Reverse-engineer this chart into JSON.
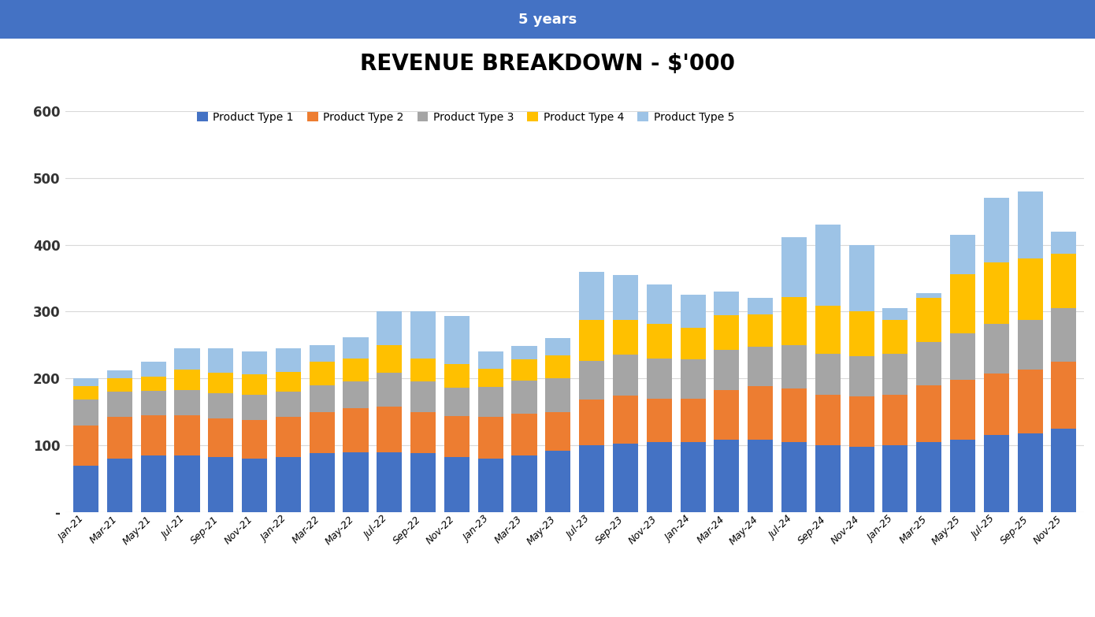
{
  "title": "REVENUE BREAKDOWN - $'000",
  "subtitle": "5 years",
  "subtitle_bg": "#4472C4",
  "subtitle_color": "#FFFFFF",
  "title_color": "#000000",
  "background_color": "#FFFFFF",
  "plot_bg": "#FFFFFF",
  "legend_labels": [
    "Product Type 1",
    "Product Type 2",
    "Product Type 3",
    "Product Type 4",
    "Product Type 5"
  ],
  "colors": [
    "#4472C4",
    "#ED7D31",
    "#A5A5A5",
    "#FFC000",
    "#9DC3E6"
  ],
  "categories": [
    "Jan-21",
    "Mar-21",
    "May-21",
    "Jul-21",
    "Sep-21",
    "Nov-21",
    "Jan-22",
    "Mar-22",
    "May-22",
    "Jul-22",
    "Sep-22",
    "Nov-22",
    "Jan-23",
    "Mar-23",
    "May-23",
    "Jul-23",
    "Sep-23",
    "Nov-23",
    "Jan-24",
    "Mar-24",
    "May-24",
    "Jul-24",
    "Sep-24",
    "Nov-24",
    "Jan-25",
    "Mar-25",
    "May-25",
    "Jul-25",
    "Sep-25",
    "Nov-25"
  ],
  "series": [
    [
      70,
      80,
      85,
      85,
      82,
      80,
      82,
      88,
      90,
      90,
      88,
      82,
      80,
      85,
      92,
      100,
      102,
      105,
      105,
      108,
      108,
      105,
      100,
      98,
      100,
      105,
      108,
      115,
      118,
      125
    ],
    [
      60,
      62,
      60,
      60,
      58,
      58,
      60,
      62,
      65,
      68,
      62,
      62,
      62,
      62,
      58,
      68,
      72,
      65,
      65,
      75,
      80,
      80,
      75,
      75,
      75,
      85,
      90,
      92,
      95,
      100
    ],
    [
      38,
      38,
      36,
      38,
      38,
      38,
      38,
      40,
      40,
      50,
      45,
      42,
      45,
      50,
      50,
      58,
      62,
      60,
      58,
      60,
      60,
      65,
      62,
      60,
      62,
      65,
      70,
      75,
      75,
      80
    ],
    [
      20,
      20,
      22,
      30,
      30,
      30,
      30,
      35,
      35,
      42,
      35,
      35,
      28,
      32,
      35,
      62,
      52,
      52,
      48,
      52,
      48,
      72,
      72,
      68,
      50,
      65,
      88,
      92,
      92,
      82
    ],
    [
      12,
      12,
      22,
      32,
      37,
      34,
      35,
      25,
      32,
      50,
      70,
      73,
      25,
      20,
      25,
      72,
      67,
      58,
      49,
      35,
      24,
      89,
      121,
      99,
      18,
      8,
      59,
      96,
      100,
      33
    ]
  ],
  "ylim": [
    0,
    600
  ],
  "yticks": [
    0,
    100,
    200,
    300,
    400,
    500,
    600
  ],
  "ytick_labels": [
    "-",
    "100",
    "200",
    "300",
    "400",
    "500",
    "600"
  ],
  "grid_color": "#D9D9D9",
  "bar_width": 0.75
}
